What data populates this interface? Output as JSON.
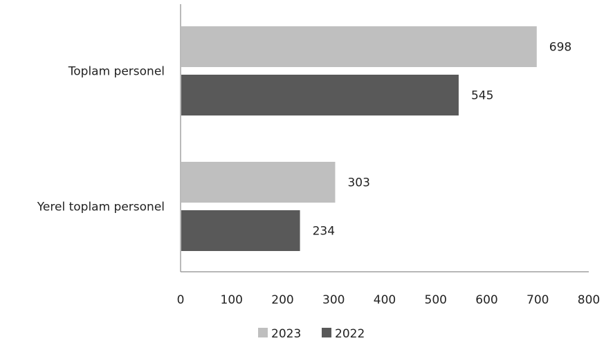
{
  "chart_data": {
    "type": "bar",
    "orientation": "horizontal",
    "categories": [
      "Toplam personel",
      "Yerel toplam personel"
    ],
    "series": [
      {
        "name": "2023",
        "values": [
          698,
          303
        ],
        "color": "#bfbfbf"
      },
      {
        "name": "2022",
        "values": [
          545,
          234
        ],
        "color": "#595959"
      }
    ],
    "xlim": [
      0,
      800
    ],
    "xticks": [
      0,
      100,
      200,
      300,
      400,
      500,
      600,
      700,
      800
    ],
    "grid": false,
    "legend": "bottom-center",
    "data_labels": true
  }
}
